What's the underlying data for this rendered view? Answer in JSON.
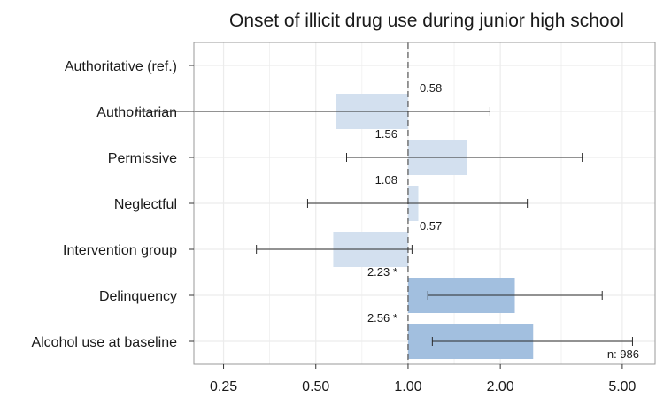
{
  "chart_data": {
    "type": "bar",
    "title": "Onset of illicit drug use during junior high school",
    "xscale": "log",
    "xlim": [
      0.2,
      6.4
    ],
    "xticks": [
      {
        "value": 0.25,
        "label": "0.25"
      },
      {
        "value": 0.5,
        "label": "0.50"
      },
      {
        "value": 1.0,
        "label": "1.00"
      },
      {
        "value": 2.0,
        "label": "2.00"
      },
      {
        "value": 5.0,
        "label": "5.00"
      }
    ],
    "reference_value": 1.0,
    "grid": true,
    "orientation": "horizontal",
    "categories": [
      "Authoritative (ref.)",
      "Authoritarian",
      "Permissive",
      "Neglectful",
      "Intervention group",
      "Delinquency",
      "Alcohol use at baseline"
    ],
    "values": [
      null,
      0.58,
      1.56,
      1.08,
      0.57,
      2.23,
      2.56
    ],
    "value_labels": [
      "",
      "0.58",
      "1.56",
      "1.08",
      "0.57",
      "2.23 *",
      "2.56 *"
    ],
    "ci_lower": [
      null,
      0.13,
      0.63,
      0.47,
      0.32,
      1.16,
      1.2
    ],
    "ci_upper": [
      null,
      1.85,
      3.7,
      2.45,
      1.03,
      4.3,
      5.4
    ],
    "significant": [
      false,
      false,
      false,
      false,
      false,
      true,
      true
    ],
    "colors": {
      "bar_nonsignificant": "#d3e0ef",
      "bar_significant": "#a2bfdf",
      "errorbar": "#2b2b2b",
      "reference_line": "#555555",
      "grid": "#ececec",
      "panel_border": "#999999",
      "text": "#1a1a1a"
    },
    "annotation": "n: 986"
  }
}
